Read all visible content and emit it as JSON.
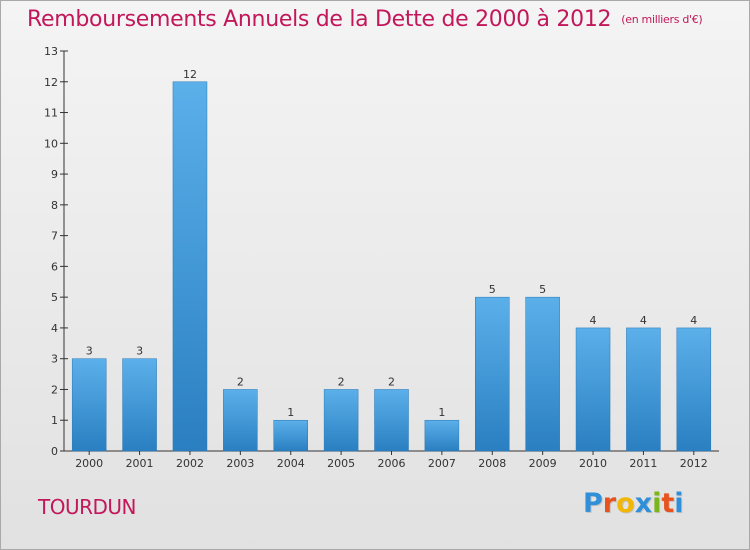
{
  "title": "Remboursements Annuels de la Dette de 2000 à 2012",
  "unit": "(en milliers d'€)",
  "commune": "TOURDUN",
  "logo": {
    "letters": [
      "P",
      "r",
      "o",
      "x",
      "i",
      "t",
      "i"
    ],
    "colors": [
      "#2f8fd8",
      "#e8521d",
      "#f2b705",
      "#2f8fd8",
      "#7ab51d",
      "#e8521d",
      "#2f8fd8"
    ]
  },
  "colors": {
    "bar_top": "#5bb0ea",
    "bar_bottom": "#2a7fc1",
    "accent": "#c2185b"
  },
  "chart_data": {
    "type": "bar",
    "categories": [
      "2000",
      "2001",
      "2002",
      "2003",
      "2004",
      "2005",
      "2006",
      "2007",
      "2008",
      "2009",
      "2010",
      "2011",
      "2012"
    ],
    "values": [
      3,
      3,
      12,
      2,
      1,
      2,
      2,
      1,
      5,
      5,
      4,
      4,
      4
    ],
    "ylim": [
      0,
      13
    ],
    "yticks": [
      0,
      1,
      2,
      3,
      4,
      5,
      6,
      7,
      8,
      9,
      10,
      11,
      12,
      13
    ],
    "grid": false,
    "title": "Remboursements Annuels de la Dette de 2000 à 2012",
    "xlabel": "",
    "ylabel": ""
  }
}
